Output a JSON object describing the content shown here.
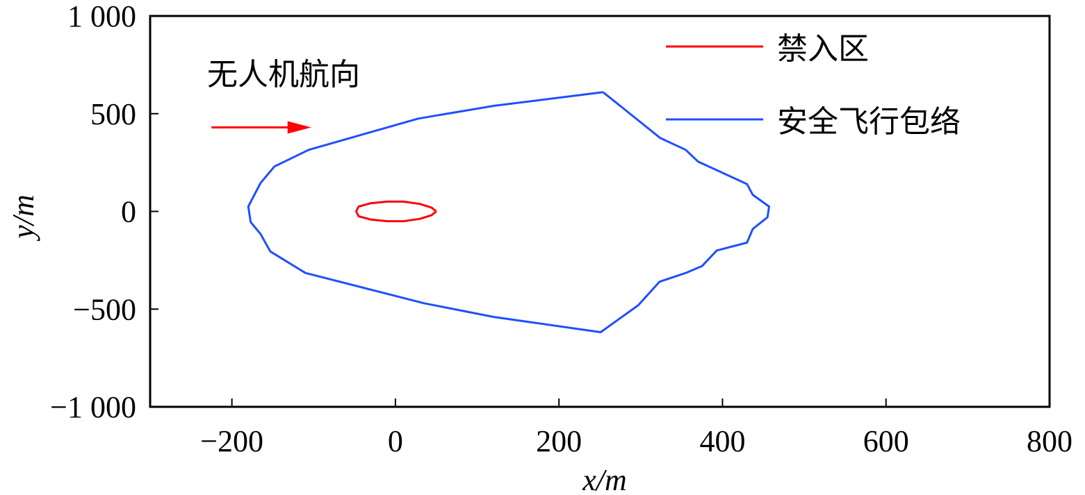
{
  "chart_data": {
    "type": "line",
    "xlabel": "x/m",
    "ylabel": "y/m",
    "xlim": [
      -300,
      800
    ],
    "ylim": [
      -1000,
      1000
    ],
    "xticks": [
      -200,
      0,
      200,
      400,
      600,
      800
    ],
    "yticks": [
      -1000,
      -500,
      0,
      500,
      1000
    ],
    "xtick_labels": [
      "−200",
      "0",
      "200",
      "400",
      "600",
      "800"
    ],
    "ytick_labels": [
      "−1 000",
      "−500",
      "0",
      "500",
      "1 000"
    ],
    "grid": false,
    "legend_position": "top-right",
    "annotation": {
      "text": "无人机航向",
      "arrow_from": [
        -225,
        430
      ],
      "arrow_to": [
        -103,
        430
      ],
      "color": "#ff0000"
    },
    "series": [
      {
        "name": "禁入区",
        "color": "#ff0000",
        "closed": true,
        "points": [
          [
            50,
            0
          ],
          [
            44,
            20
          ],
          [
            30,
            38
          ],
          [
            10,
            50
          ],
          [
            -10,
            50
          ],
          [
            -30,
            42
          ],
          [
            -45,
            25
          ],
          [
            -48,
            0
          ],
          [
            -45,
            -25
          ],
          [
            -30,
            -42
          ],
          [
            -10,
            -50
          ],
          [
            10,
            -50
          ],
          [
            30,
            -38
          ],
          [
            44,
            -20
          ],
          [
            50,
            0
          ]
        ]
      },
      {
        "name": "安全飞行包络",
        "color": "#1f4fff",
        "closed": true,
        "points": [
          [
            254,
            610
          ],
          [
            324,
            375
          ],
          [
            355,
            315
          ],
          [
            370,
            255
          ],
          [
            430,
            140
          ],
          [
            437,
            85
          ],
          [
            457,
            25
          ],
          [
            455,
            -30
          ],
          [
            437,
            -90
          ],
          [
            430,
            -160
          ],
          [
            393,
            -200
          ],
          [
            375,
            -280
          ],
          [
            355,
            -315
          ],
          [
            323,
            -360
          ],
          [
            297,
            -480
          ],
          [
            251,
            -618
          ],
          [
            120,
            -540
          ],
          [
            35,
            -470
          ],
          [
            -110,
            -315
          ],
          [
            -153,
            -205
          ],
          [
            -165,
            -115
          ],
          [
            -177,
            -55
          ],
          [
            -180,
            25
          ],
          [
            -165,
            145
          ],
          [
            -148,
            230
          ],
          [
            -106,
            315
          ],
          [
            28,
            475
          ],
          [
            120,
            540
          ],
          [
            254,
            610
          ]
        ]
      }
    ]
  }
}
